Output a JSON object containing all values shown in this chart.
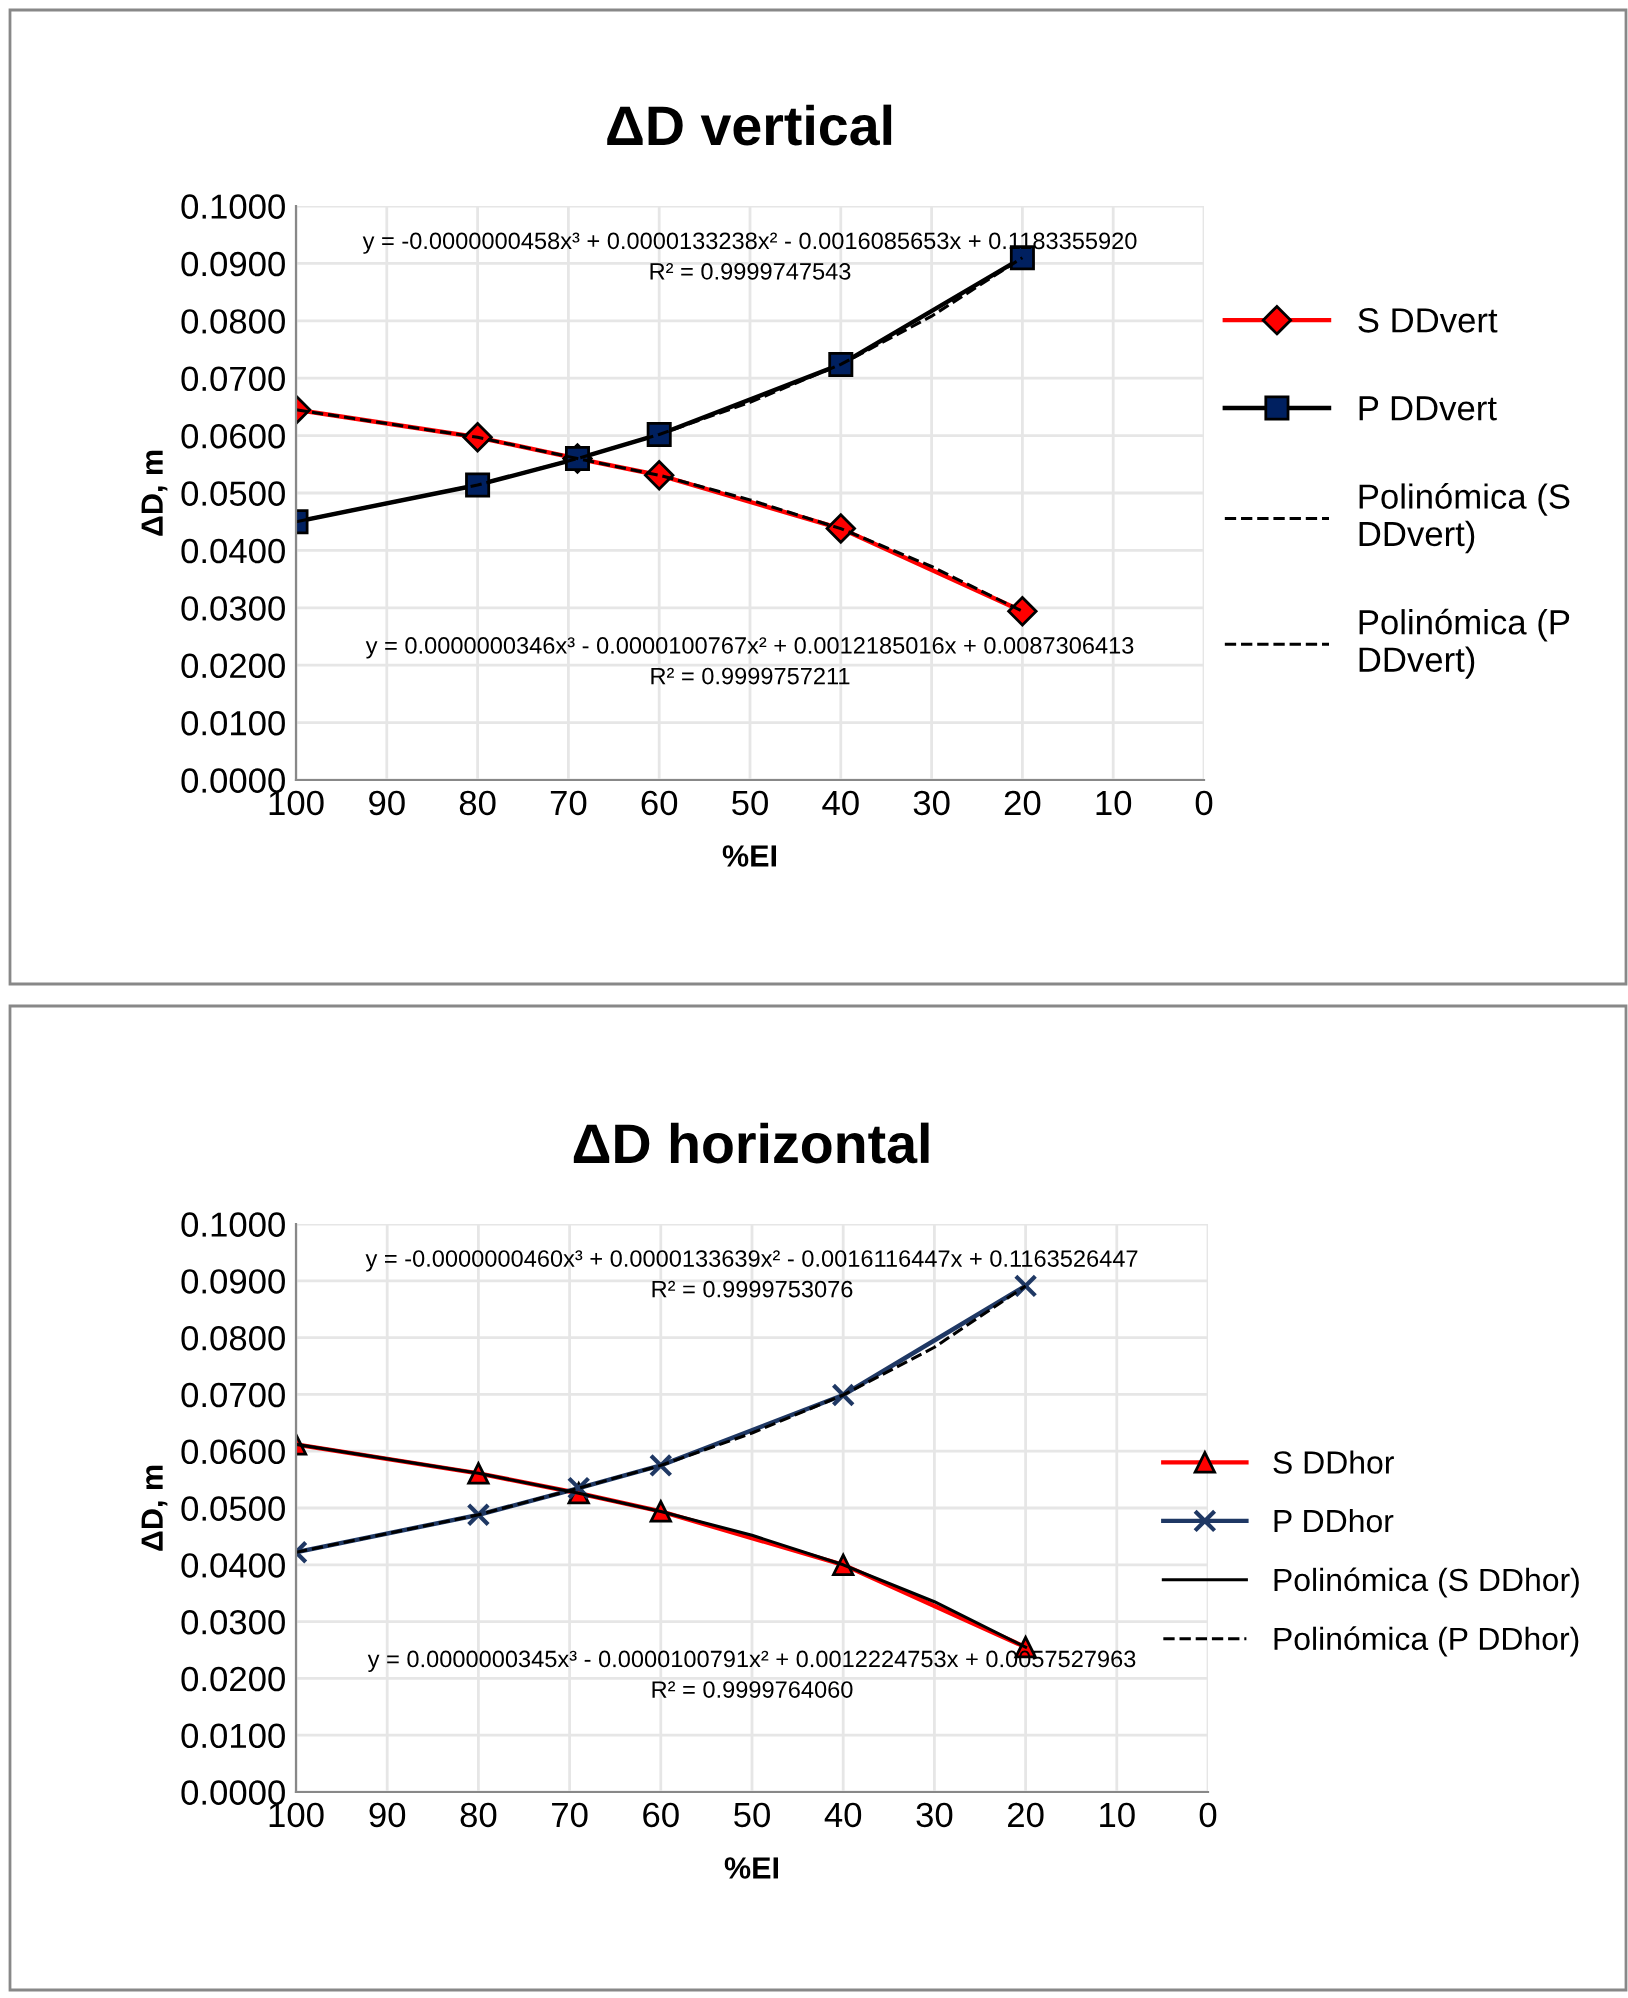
{
  "chart_data": [
    {
      "type": "line",
      "title": "ΔD vertical",
      "xlabel": "%EI",
      "ylabel": "ΔD, m",
      "xlim": [
        100,
        0
      ],
      "xticks": [
        100,
        90,
        80,
        70,
        60,
        50,
        40,
        30,
        20,
        10,
        0
      ],
      "ylim": [
        0,
        0.1
      ],
      "yticks": [
        {
          "value": 0,
          "label": "0.0000"
        },
        {
          "value": 0.01,
          "label": "0.0100"
        },
        {
          "value": 0.02,
          "label": "0.0200"
        },
        {
          "value": 0.03,
          "label": "0.0300"
        },
        {
          "value": 0.04,
          "label": "0.0400"
        },
        {
          "value": 0.05,
          "label": "0.0500"
        },
        {
          "value": 0.06,
          "label": "0.0600"
        },
        {
          "value": 0.07,
          "label": "0.0700"
        },
        {
          "value": 0.08,
          "label": "0.0800"
        },
        {
          "value": 0.09,
          "label": "0.0900"
        },
        {
          "value": 0.1,
          "label": "0.1000"
        }
      ],
      "grid": true,
      "legend": "right",
      "x": [
        100,
        80,
        69,
        60,
        40,
        20
      ],
      "series": [
        {
          "name": "S DDvert",
          "color": "#ff0000",
          "marker": "diamond",
          "values": [
            0.0645,
            0.0597,
            0.056,
            0.0531,
            0.0438,
            0.0294
          ]
        },
        {
          "name": "P DDvert",
          "color": "#000000",
          "colors": [
            "#002060",
            "#002060",
            "#002060",
            "#002060",
            "#002060",
            "#002060"
          ],
          "marker": "square",
          "values": [
            0.045,
            0.0514,
            0.056,
            0.0602,
            0.0724,
            0.091
          ]
        },
        {
          "name": "Polinómica (S DDvert)",
          "type": "line",
          "color": "#000000",
          "line_style": "dashed",
          "marker": "none",
          "x": [
            100,
            80,
            69,
            60,
            50,
            40,
            30,
            20
          ],
          "values": [
            0.0645,
            0.0597,
            0.056,
            0.0531,
            0.0488,
            0.0438,
            0.0372,
            0.0294
          ]
        },
        {
          "name": "Polinómica (P DDvert)",
          "type": "line",
          "color": "#000000",
          "line_style": "dashed",
          "marker": "none",
          "x": [
            100,
            80,
            69,
            60,
            50,
            40,
            30,
            20
          ],
          "values": [
            0.045,
            0.0514,
            0.056,
            0.0602,
            0.0658,
            0.0724,
            0.0808,
            0.091
          ]
        }
      ],
      "annotations": [
        "y = -0.0000000458x³ + 0.0000133238x² - 0.0016085653x + 0.1183355920\nR² = 0.9999747543",
        "y = 0.0000000346x³ - 0.0000100767x² + 0.0012185016x + 0.0087306413\nR² = 0.9999757211"
      ]
    },
    {
      "type": "line",
      "title": "ΔD horizontal",
      "xlabel": "%EI",
      "ylabel": "ΔD, m",
      "xlim": [
        100,
        0
      ],
      "xticks": [
        100,
        90,
        80,
        70,
        60,
        50,
        40,
        30,
        20,
        10,
        0
      ],
      "ylim": [
        0,
        0.1
      ],
      "yticks": [
        {
          "value": 0,
          "label": "0.0000"
        },
        {
          "value": 0.01,
          "label": "0.0100"
        },
        {
          "value": 0.02,
          "label": "0.0200"
        },
        {
          "value": 0.03,
          "label": "0.0300"
        },
        {
          "value": 0.04,
          "label": "0.0400"
        },
        {
          "value": 0.05,
          "label": "0.0500"
        },
        {
          "value": 0.06,
          "label": "0.0600"
        },
        {
          "value": 0.07,
          "label": "0.0700"
        },
        {
          "value": 0.08,
          "label": "0.0800"
        },
        {
          "value": 0.09,
          "label": "0.0900"
        },
        {
          "value": 0.1,
          "label": "0.1000"
        }
      ],
      "grid": true,
      "legend": "right",
      "x": [
        100,
        80,
        69,
        60,
        40,
        20
      ],
      "series": [
        {
          "name": "S DDhor",
          "color": "#ff0000",
          "marker": "triangle",
          "values": [
            0.0612,
            0.0561,
            0.0526,
            0.0494,
            0.04,
            0.0255
          ]
        },
        {
          "name": "P DDhor",
          "color": "#1f3864",
          "marker": "cross",
          "values": [
            0.0422,
            0.0488,
            0.0535,
            0.0575,
            0.0699,
            0.0891
          ]
        },
        {
          "name": "Polinómica (S DDhor)",
          "type": "line",
          "color": "#000000",
          "line_style": "solid",
          "marker": "none",
          "x": [
            100,
            80,
            69,
            60,
            50,
            40,
            30,
            20
          ],
          "values": [
            0.0612,
            0.0561,
            0.0526,
            0.0494,
            0.0452,
            0.04,
            0.0335,
            0.0255
          ]
        },
        {
          "name": "Polinómica (P DDhor)",
          "type": "line",
          "color": "#000000",
          "line_style": "dashed",
          "marker": "none",
          "x": [
            100,
            80,
            69,
            60,
            50,
            40,
            30,
            20
          ],
          "values": [
            0.0422,
            0.0488,
            0.0535,
            0.0575,
            0.0632,
            0.0699,
            0.0783,
            0.0891
          ]
        }
      ],
      "annotations": [
        "y = -0.0000000460x³ + 0.0000133639x² - 0.0016116447x + 0.1163526447\nR² = 0.9999753076",
        "y = 0.0000000345x³ - 0.0000100791x² + 0.0012224753x + 0.0057527963\nR² = 0.9999764060"
      ]
    }
  ]
}
